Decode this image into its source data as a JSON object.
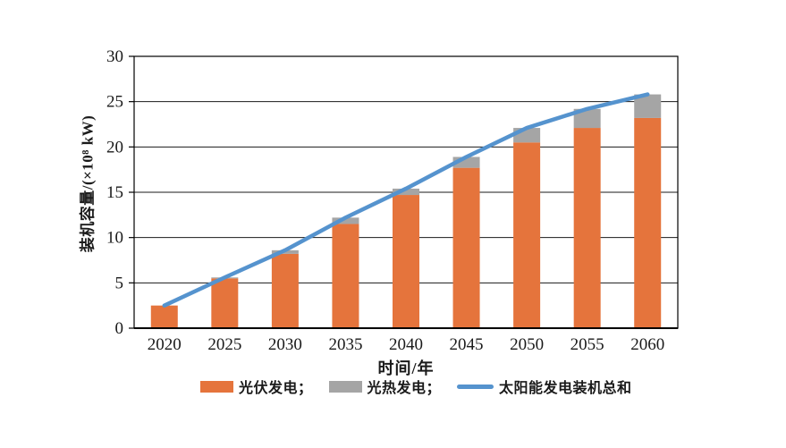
{
  "chart_data": {
    "type": "bar",
    "subtype": "stacked-bars-with-total-line",
    "title": "",
    "categories": [
      "2020",
      "2025",
      "2030",
      "2035",
      "2040",
      "2045",
      "2050",
      "2055",
      "2060"
    ],
    "series": [
      {
        "name": "光伏发电",
        "type": "bar",
        "color": "#E5743C",
        "values": [
          2.5,
          5.5,
          8.2,
          11.5,
          14.7,
          17.7,
          20.5,
          22.1,
          23.2
        ]
      },
      {
        "name": "光热发电",
        "type": "bar",
        "color": "#A5A5A5",
        "values": [
          0,
          0.1,
          0.4,
          0.7,
          0.7,
          1.2,
          1.6,
          2.1,
          2.6
        ]
      },
      {
        "name": "太阳能发电装机总和",
        "type": "line",
        "color": "#5593CE",
        "values": [
          2.5,
          5.6,
          8.6,
          12.2,
          15.4,
          18.9,
          22.1,
          24.2,
          25.8
        ]
      }
    ],
    "xlabel": "时间/年",
    "ylabel": "装机容量/(×10⁸ kW)",
    "ylim": [
      0,
      30
    ],
    "yticks": [
      0,
      5,
      10,
      15,
      20,
      25,
      30
    ],
    "grid": "horizontal",
    "legend_position": "bottom"
  },
  "legend": {
    "items": [
      {
        "label": "光伏发电；",
        "swatch": "bar",
        "color": "#E5743C"
      },
      {
        "label": "光热发电；",
        "swatch": "bar",
        "color": "#A5A5A5"
      },
      {
        "label": "太阳能发电装机总和",
        "swatch": "line",
        "color": "#5593CE"
      }
    ]
  },
  "style": {
    "grid_color": "#1a1a1a",
    "axis_color": "#000000",
    "tick_label_color": "#1a1a1a"
  }
}
